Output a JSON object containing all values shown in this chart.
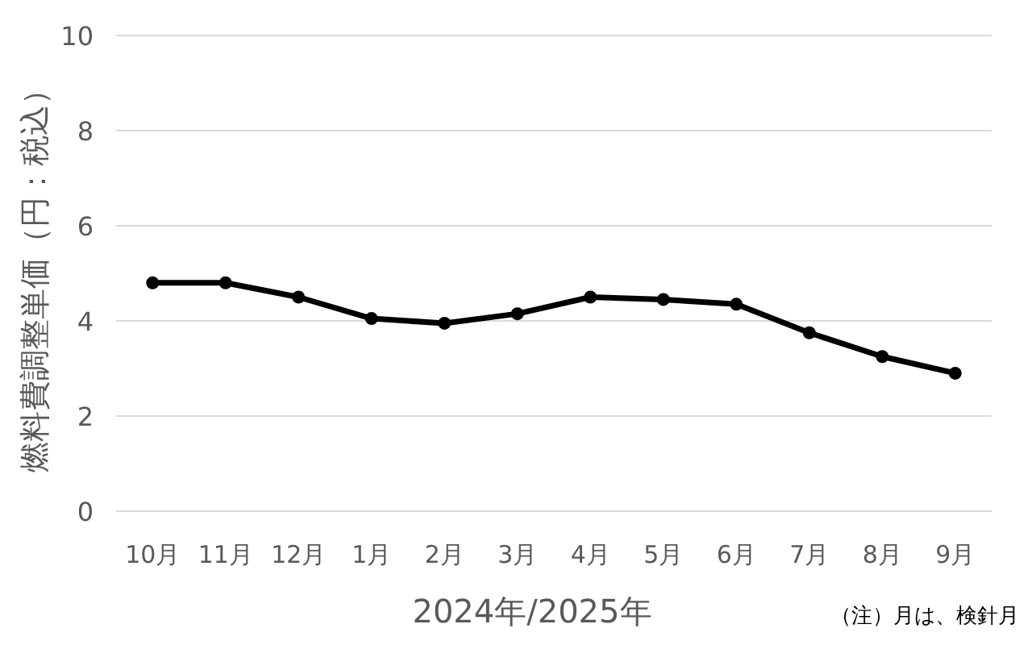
{
  "chart_data": {
    "type": "line",
    "ylabel": "燃料費調整単価（円：税込）",
    "xlabel": "2024年/2025年",
    "categories": [
      "10月",
      "11月",
      "12月",
      "1月",
      "2月",
      "3月",
      "4月",
      "5月",
      "6月",
      "7月",
      "8月",
      "9月"
    ],
    "series": [
      {
        "color": "#000000",
        "values": [
          4.8,
          4.8,
          4.5,
          4.05,
          3.95,
          4.15,
          4.5,
          4.45,
          4.35,
          3.75,
          3.25,
          2.9
        ]
      }
    ],
    "ylim": [
      0,
      10
    ],
    "yticks": [
      0,
      2,
      4,
      6,
      8,
      10
    ],
    "grid": "y",
    "marker": "circle",
    "line_style": "solid",
    "annotations": [
      "（注）月は、検針月"
    ]
  }
}
